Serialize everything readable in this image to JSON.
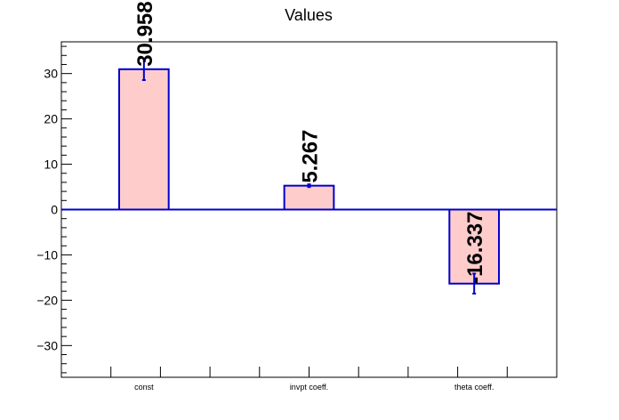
{
  "chart_data": {
    "type": "bar",
    "title": "Values",
    "xlabel": "",
    "ylabel": "",
    "categories": [
      "const",
      "invpt coeff.",
      "theta coeff."
    ],
    "values": [
      30.958,
      5.267,
      -16.337
    ],
    "value_labels": [
      "30.958",
      "5.267",
      "-16.337"
    ],
    "errors": [
      2.4,
      0.3,
      2.2
    ],
    "ylim": [
      -37,
      37
    ],
    "yticks": [
      -30,
      -20,
      -10,
      0,
      10,
      20,
      30
    ],
    "ytick_labels": [
      "−30",
      "−20",
      "−10",
      "0",
      "10",
      "20",
      "30"
    ],
    "grid": false,
    "legend": "none",
    "colors": {
      "bar_fill": "#ffcccc",
      "bar_edge": "#0000cc",
      "zero_line": "#0000cc",
      "axis": "#000000"
    }
  }
}
